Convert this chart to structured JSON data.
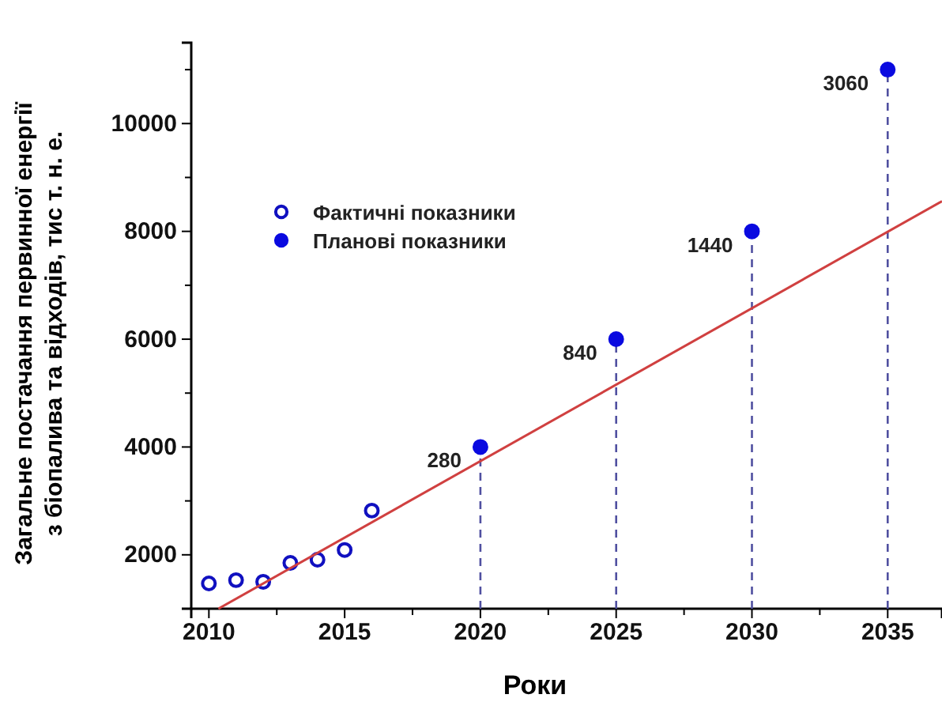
{
  "chart_data": {
    "type": "scatter",
    "xlabel": "Роки",
    "ylabel": "Загальне постачання первинної енергії з біопалива та відходів, тис т. н. е.",
    "xlim": [
      2009.35,
      2037
    ],
    "ylim": [
      1000,
      11500
    ],
    "xticks": [
      2010,
      {
        "value": 2012.5,
        "label": null
      },
      2015,
      {
        "value": 2017.5,
        "label": null
      },
      2020,
      {
        "value": 2022.5,
        "label": null
      },
      2025,
      {
        "value": 2027.5,
        "label": null
      },
      2030,
      {
        "value": 2032.5,
        "label": null
      },
      2035
    ],
    "yticks": [
      2000,
      {
        "value": 3000,
        "label": null
      },
      4000,
      {
        "value": 5000,
        "label": null
      },
      6000,
      {
        "value": 7000,
        "label": null
      },
      8000,
      {
        "value": 9000,
        "label": null
      },
      10000,
      {
        "value": 11000,
        "label": null
      }
    ],
    "grid": false,
    "legend": "top left",
    "marker": "circle",
    "series": [
      {
        "name": "Фактичні показники",
        "color": "#1010c0",
        "x": [
          2010,
          2011,
          2012,
          2013,
          2014,
          2015,
          2016
        ],
        "values": [
          1470,
          1530,
          1500,
          1850,
          1910,
          2090,
          2820
        ]
      },
      {
        "name": "Планові показники",
        "type": "lollipop",
        "color": "#0a0ae0",
        "line_style": "dashed",
        "x": [
          2020,
          2025,
          2030,
          2035
        ],
        "values": [
          4000,
          6000,
          8000,
          11000
        ]
      },
      {
        "type": "line",
        "color": "#d04040",
        "marker": "none",
        "x": [
          2010.35,
          2037
        ],
        "values": [
          1000,
          8560
        ]
      }
    ],
    "annotations": [
      "280",
      "840",
      "1440",
      "3060"
    ]
  }
}
